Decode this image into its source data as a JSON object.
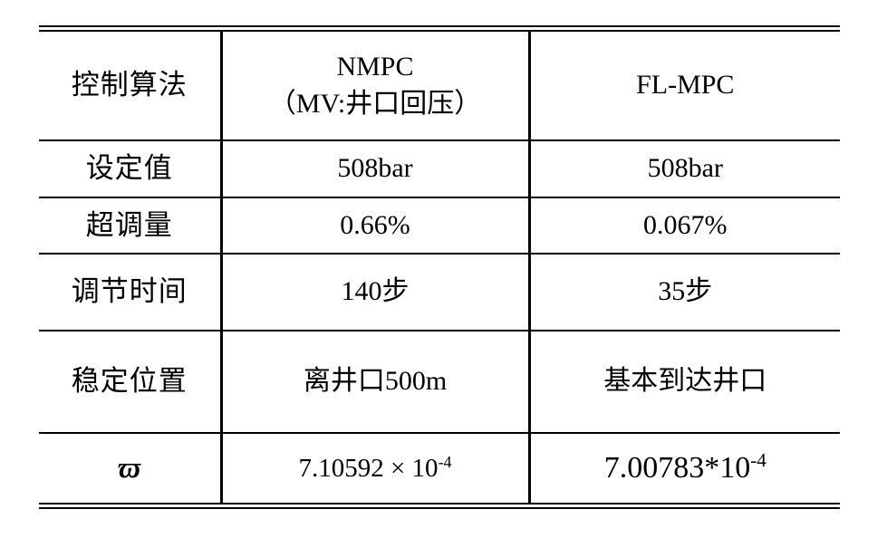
{
  "page": {
    "background_color": "#ffffff",
    "text_color": "#000000",
    "border_color": "#000000"
  },
  "table": {
    "header": {
      "metric": "控制算法",
      "nmpc_line1": "NMPC",
      "nmpc_line2": "（MV:井口回压）",
      "flmpc": "FL-MPC"
    },
    "rows": [
      {
        "label": "设定值",
        "nmpc": "508bar",
        "flmpc": "508bar"
      },
      {
        "label": "超调量",
        "nmpc": "0.66%",
        "flmpc": "0.067%"
      },
      {
        "label": "调节时间",
        "nmpc": "140步",
        "flmpc": "35步"
      },
      {
        "label": "稳定位置",
        "nmpc": "离井口500m",
        "flmpc": "基本到达井口"
      }
    ],
    "varpi_row": {
      "label": "ϖ",
      "nmpc_base": "7.10592 × 10",
      "nmpc_exponent": "-4",
      "flmpc_base": "7.00783*10",
      "flmpc_exponent": "-4"
    }
  }
}
